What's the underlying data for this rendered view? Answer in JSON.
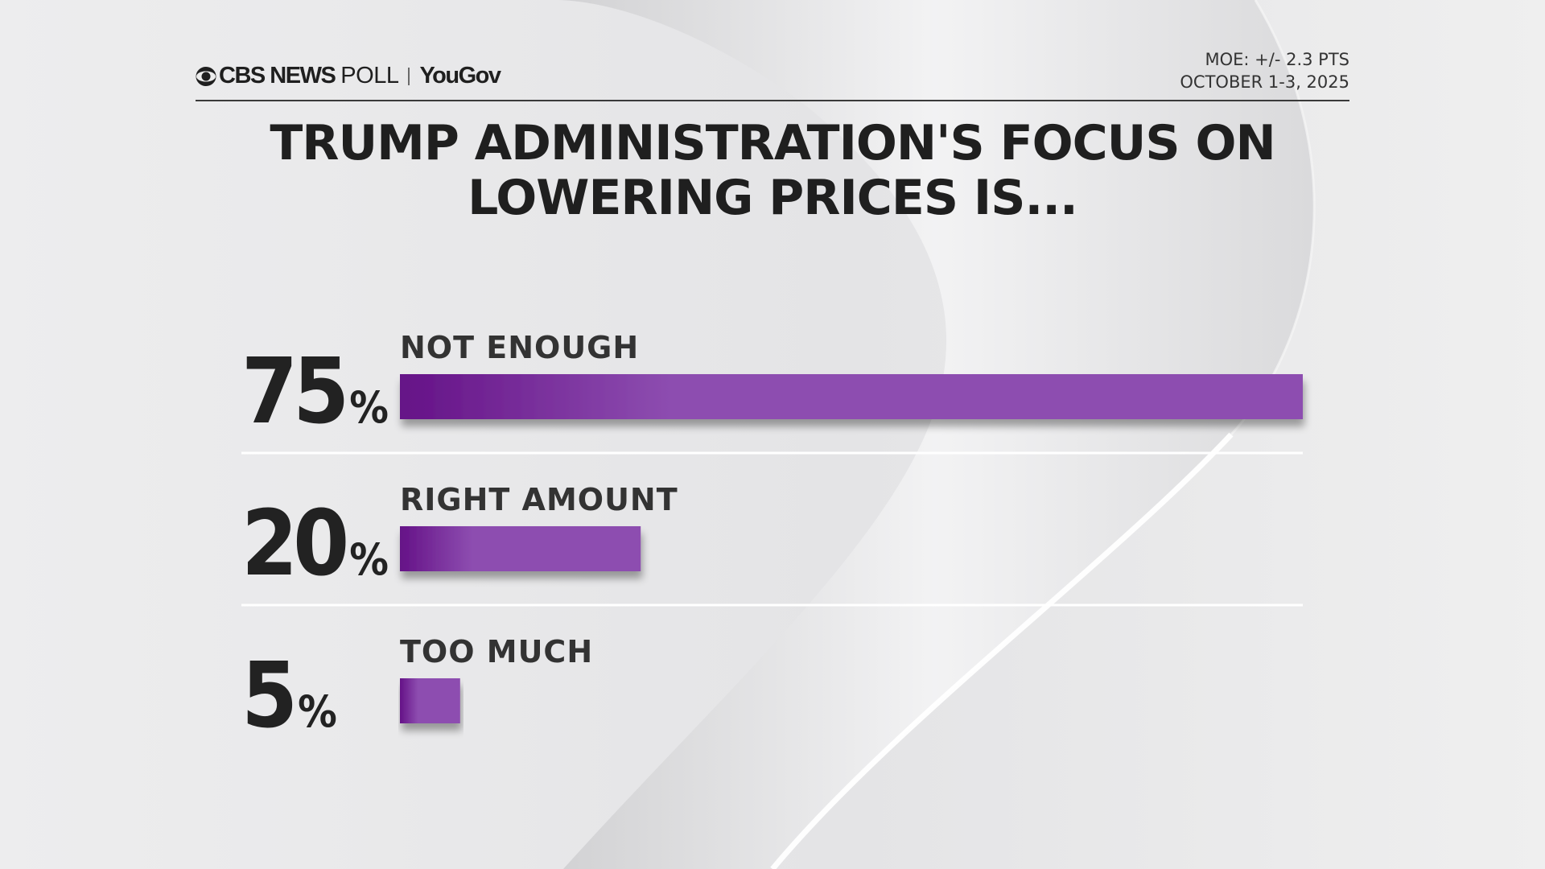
{
  "header": {
    "brand_cbs": "CBS NEWS",
    "brand_poll": "POLL",
    "brand_yougov": "YouGov",
    "moe": "MOE: +/- 2.3 PTS",
    "dates": "OCTOBER 1-3, 2025"
  },
  "title": {
    "line1": "TRUMP ADMINISTRATION'S FOCUS ON",
    "line2": "LOWERING PRICES IS..."
  },
  "colors": {
    "bar_light": "#8d4db0",
    "bar_dark": "#651287",
    "text": "#222222"
  },
  "icons": {
    "logo": "cbs-eye-icon"
  },
  "chart_data": {
    "type": "bar",
    "orientation": "horizontal",
    "title": "TRUMP ADMINISTRATION'S FOCUS ON LOWERING PRICES IS...",
    "categories": [
      "NOT ENOUGH",
      "RIGHT AMOUNT",
      "TOO MUCH"
    ],
    "values": [
      75,
      20,
      5
    ],
    "value_labels": [
      "75",
      "20",
      "5"
    ],
    "unit": "%",
    "xlim": [
      0,
      75
    ],
    "grid": false,
    "legend": "none"
  }
}
